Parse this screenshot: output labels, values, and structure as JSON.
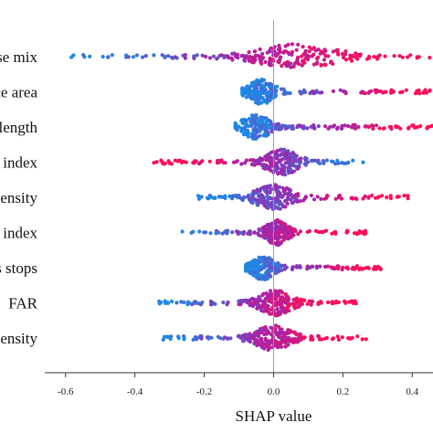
{
  "chart_data": {
    "type": "scatter",
    "subtype": "shap-beeswarm",
    "title": "",
    "xlabel": "SHAP value",
    "ylabel": "",
    "xlim": [
      -0.66,
      0.46
    ],
    "xticks": [
      -0.6,
      -0.4,
      -0.2,
      0.0,
      0.2,
      0.4
    ],
    "xtick_labels": [
      "-0.6",
      "-0.4",
      "-0.2",
      "0.0",
      "0.2",
      "0.4"
    ],
    "zero_line": true,
    "grid": false,
    "color_low": "#1e88e5",
    "color_high": "#ff0d57",
    "color_mid": "#9c27b0",
    "features": [
      {
        "label": "se mix",
        "min": -0.61,
        "max": 0.46,
        "core_low": -0.04,
        "core_high": 0.18,
        "core_peak": 0.0,
        "tail_left": "low",
        "tail_right": "high"
      },
      {
        "label": "ce area",
        "min": -0.09,
        "max": 0.46,
        "core_low": -0.07,
        "core_high": 0.0,
        "core_peak": -0.05,
        "tail_left": "low",
        "tail_right": "high"
      },
      {
        "label": "length",
        "min": -0.11,
        "max": 0.46,
        "core_low": -0.09,
        "core_high": -0.01,
        "core_peak": -0.05,
        "tail_left": "low",
        "tail_right": "high"
      },
      {
        "label": "index",
        "min": -0.35,
        "max": 0.26,
        "core_low": -0.02,
        "core_high": 0.07,
        "core_peak": 0.03,
        "tail_left": "high",
        "tail_right": "low"
      },
      {
        "label": "ensity",
        "min": -0.22,
        "max": 0.4,
        "core_low": -0.05,
        "core_high": 0.05,
        "core_peak": -0.01,
        "tail_left": "low",
        "tail_right": "high"
      },
      {
        "label": "index",
        "min": -0.27,
        "max": 0.27,
        "core_low": -0.02,
        "core_high": 0.04,
        "core_peak": 0.01,
        "tail_left": "low",
        "tail_right": "high"
      },
      {
        "label": "s stops",
        "min": -0.08,
        "max": 0.31,
        "core_low": -0.06,
        "core_high": 0.0,
        "core_peak": -0.04,
        "tail_left": "low",
        "tail_right": "high"
      },
      {
        "label": "FAR",
        "min": -0.33,
        "max": 0.24,
        "core_low": -0.04,
        "core_high": 0.05,
        "core_peak": 0.0,
        "tail_left": "low",
        "tail_right": "high"
      },
      {
        "label": "ensity",
        "min": -0.32,
        "max": 0.27,
        "core_low": -0.05,
        "core_high": 0.05,
        "core_peak": 0.0,
        "tail_left": "low",
        "tail_right": "high"
      }
    ]
  }
}
